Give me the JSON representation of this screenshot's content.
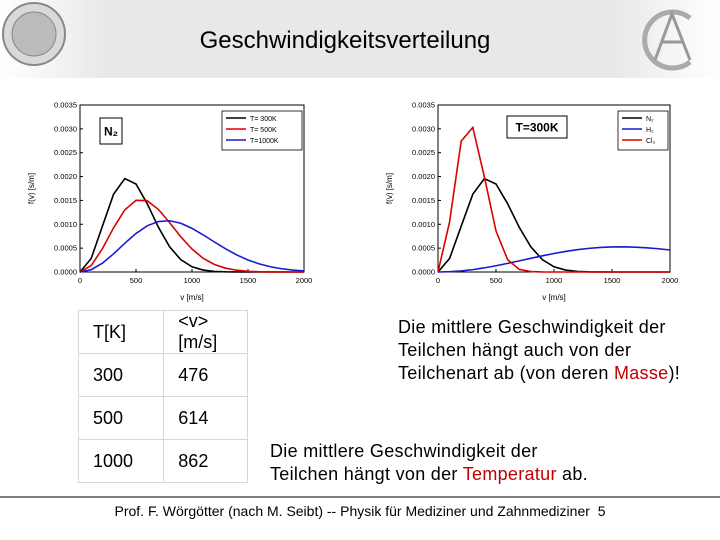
{
  "header": {
    "title": "Geschwindigkeitsverteilung"
  },
  "chart_data": [
    {
      "type": "line",
      "ylabel": "f(v) [s/m]",
      "xlabel": "v [m/s]",
      "annotation": "N₂",
      "x": [
        0,
        100,
        200,
        300,
        400,
        500,
        600,
        700,
        800,
        900,
        1000,
        1100,
        1200,
        1300,
        1400,
        1500,
        1600,
        1700,
        1800,
        1900,
        2000
      ],
      "series": [
        {
          "name": "T= 300K",
          "color": "#000000",
          "values": [
            0,
            0.000284,
            0.00096,
            0.001631,
            0.001957,
            0.001845,
            0.001432,
            0.000939,
            0.000528,
            0.000258,
            0.000109,
            4.1e-05,
            1.3e-05,
            4e-06,
            1e-06,
            0,
            0,
            0,
            0,
            0,
            0
          ]
        },
        {
          "name": "T= 500K",
          "color": "#dd0000",
          "values": [
            0,
            0.000135,
            0.000487,
            0.000927,
            0.001302,
            0.001502,
            0.001494,
            0.001312,
            0.001034,
            0.000739,
            0.000481,
            0.000287,
            0.000158,
            8e-05,
            3.7e-05,
            1.6e-05,
            6e-06,
            2e-06,
            1e-06,
            0,
            0
          ]
        },
        {
          "name": "T=1000K",
          "color": "#1a1acc",
          "values": [
            0,
            4.8e-05,
            0.000184,
            0.000381,
            0.000602,
            0.000808,
            0.000968,
            0.001058,
            0.001074,
            0.001021,
            0.000915,
            0.000778,
            0.000629,
            0.000485,
            0.000357,
            0.000252,
            0.00017,
            0.00011,
            6.8e-05,
            4.1e-05,
            2.3e-05
          ]
        }
      ],
      "xlim": [
        0,
        2000
      ],
      "xticks": [
        0,
        500,
        1000,
        1500,
        2000
      ],
      "ylim": [
        0,
        0.0035
      ],
      "yticks": [
        {
          "value": 0,
          "label": "0.0000"
        },
        {
          "value": 0.0005,
          "label": "0.0005"
        },
        {
          "value": 0.001,
          "label": "0.0010"
        },
        {
          "value": 0.0015,
          "label": "0.0015"
        },
        {
          "value": 0.002,
          "label": "0.0020"
        },
        {
          "value": 0.0025,
          "label": "0.0025"
        },
        {
          "value": 0.003,
          "label": "0.0030"
        },
        {
          "value": 0.0035,
          "label": "0.0035"
        }
      ]
    },
    {
      "type": "line",
      "ylabel": "f(v) [s/m]",
      "xlabel": "v [m/s]",
      "annotation": "T=300K",
      "x": [
        0,
        100,
        200,
        300,
        400,
        500,
        600,
        700,
        800,
        900,
        1000,
        1100,
        1200,
        1300,
        1400,
        1500,
        1600,
        1700,
        1800,
        1900,
        2000
      ],
      "series": [
        {
          "name": "N₂",
          "color": "#000000",
          "values": [
            0,
            0.000284,
            0.00096,
            0.001631,
            0.001957,
            0.001845,
            0.001432,
            0.000939,
            0.000528,
            0.000258,
            0.000109,
            4.1e-05,
            1.3e-05,
            4e-06,
            1e-06,
            0,
            0,
            0,
            0,
            0,
            0
          ]
        },
        {
          "name": "H₂",
          "color": "#1a1acc",
          "values": [
            0,
            6e-06,
            2.3e-05,
            5e-05,
            8.7e-05,
            0.000131,
            0.000181,
            0.000233,
            0.000287,
            0.000339,
            0.000388,
            0.000431,
            0.000467,
            0.000495,
            0.000515,
            0.000526,
            0.000528,
            0.000521,
            0.000507,
            0.000487,
            0.000461
          ]
        },
        {
          "name": "Cl₂",
          "color": "#dd0000",
          "values": [
            0,
            0.001052,
            0.002744,
            0.00303,
            0.001989,
            0.000862,
            0.000259,
            5.5e-05,
            9e-06,
            1e-06,
            0,
            0,
            0,
            0,
            0,
            0,
            0,
            0,
            0,
            0,
            0
          ]
        }
      ],
      "xlim": [
        0,
        2000
      ],
      "xticks": [
        0,
        500,
        1000,
        1500,
        2000
      ],
      "ylim": [
        0,
        0.0035
      ],
      "yticks": [
        {
          "value": 0,
          "label": "0.0000"
        },
        {
          "value": 0.0005,
          "label": "0.0005"
        },
        {
          "value": 0.001,
          "label": "0.0010"
        },
        {
          "value": 0.0015,
          "label": "0.0015"
        },
        {
          "value": 0.002,
          "label": "0.0020"
        },
        {
          "value": 0.0025,
          "label": "0.0025"
        },
        {
          "value": 0.003,
          "label": "0.0030"
        },
        {
          "value": 0.0035,
          "label": "0.0035"
        }
      ]
    }
  ],
  "table": {
    "header": [
      [
        "T[K]"
      ],
      [
        "<v>",
        "[m/s]"
      ]
    ],
    "rows": [
      [
        300,
        476
      ],
      [
        500,
        614
      ],
      [
        1000,
        862
      ]
    ]
  },
  "notes": [
    {
      "before": "Die mittlere Geschwindigkeit der Teilchen hängt auch von der Teilchenart ab (von deren ",
      "highlight": "Masse",
      "after": ")!"
    },
    {
      "before": "Die mittlere Geschwindigkeit der Teilchen hängt von der ",
      "highlight": "Temperatur",
      "after": " ab."
    }
  ],
  "highlight_color": "#c00000",
  "footer": {
    "text": "Prof. F. Wörgötter (nach M. Seibt) -- Physik für Mediziner und Zahnmediziner",
    "page": "5"
  }
}
